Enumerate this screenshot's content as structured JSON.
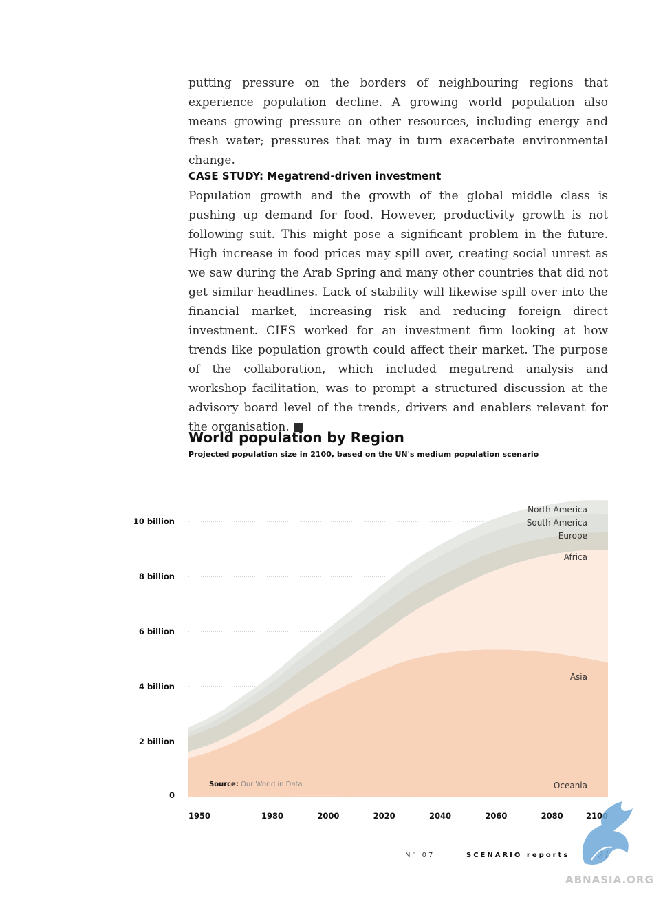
{
  "article": {
    "paragraph1": "putting pressure on the borders of neighbouring regions that experience population decline. A growing world population also means growing pressure on other resources, including energy and fresh water; pressures that may in turn exacerbate environmental change.",
    "case_heading": "CASE STUDY: Megatrend-driven investment",
    "paragraph2": "Population growth and the growth of the global middle class is pushing up demand for food. However, productivity growth is not following suit. This might pose a significant problem in the future. High increase in food prices may spill over, creating social unrest as we saw during the Arab Spring and many other countries that did not get similar headlines. Lack of stability will likewise spill over into the financial market, increasing risk and reducing foreign direct investment. CIFS worked for an investment firm looking at how trends like population growth could affect their market. The purpose of the collaboration, which included megatrend analysis and workshop facilitation, was to prompt a structured discussion at the advisory board level of the trends, drivers and enablers relevant for the organisation. ■"
  },
  "chart_data": {
    "type": "area",
    "stacked": true,
    "title": "World population by Region",
    "subtitle": "Projected population size in 2100, based on the UN's medium population scenario",
    "x": [
      1950,
      1960,
      1970,
      1980,
      1990,
      2000,
      2010,
      2020,
      2030,
      2040,
      2050,
      2060,
      2070,
      2080,
      2090,
      2100
    ],
    "x_ticks": [
      1950,
      1980,
      2000,
      2020,
      2040,
      2060,
      2080,
      2100
    ],
    "x_tick_labels": [
      "1950",
      "1980",
      "2000",
      "2020",
      "2040",
      "2060",
      "2080",
      "2100"
    ],
    "y_ticks": [
      0,
      2,
      4,
      6,
      8,
      10
    ],
    "y_tick_labels": [
      "0",
      "2 billion",
      "4 billion",
      "6 billion",
      "8 billion",
      "10 billion"
    ],
    "ylim": [
      0,
      11
    ],
    "xlim": [
      1950,
      2100
    ],
    "grid": "horizontal-dotted",
    "series": [
      {
        "name": "Oceania",
        "color": "#f7d0b6",
        "values": [
          0.01,
          0.02,
          0.02,
          0.02,
          0.03,
          0.03,
          0.04,
          0.04,
          0.05,
          0.05,
          0.06,
          0.06,
          0.06,
          0.07,
          0.07,
          0.07
        ]
      },
      {
        "name": "Asia",
        "color": "#f9d2ba",
        "values": [
          1.38,
          1.69,
          2.13,
          2.63,
          3.2,
          3.71,
          4.17,
          4.6,
          4.95,
          5.15,
          5.25,
          5.28,
          5.25,
          5.15,
          5.0,
          4.8
        ]
      },
      {
        "name": "Africa",
        "color": "#fdebe0",
        "values": [
          0.23,
          0.28,
          0.36,
          0.48,
          0.63,
          0.81,
          1.04,
          1.34,
          1.7,
          2.08,
          2.49,
          2.9,
          3.26,
          3.58,
          3.87,
          4.1
        ]
      },
      {
        "name": "Europe",
        "color": "#d9d6cc",
        "values": [
          0.55,
          0.6,
          0.66,
          0.69,
          0.72,
          0.73,
          0.74,
          0.75,
          0.74,
          0.73,
          0.71,
          0.69,
          0.67,
          0.65,
          0.64,
          0.63
        ]
      },
      {
        "name": "South America",
        "color": "#dfe2dc",
        "values": [
          0.17,
          0.22,
          0.29,
          0.36,
          0.44,
          0.52,
          0.59,
          0.65,
          0.7,
          0.73,
          0.75,
          0.75,
          0.74,
          0.72,
          0.7,
          0.68
        ]
      },
      {
        "name": "North America",
        "color": "#e7e9e5",
        "values": [
          0.17,
          0.2,
          0.23,
          0.25,
          0.28,
          0.31,
          0.34,
          0.37,
          0.39,
          0.41,
          0.42,
          0.44,
          0.45,
          0.46,
          0.48,
          0.49
        ]
      }
    ],
    "legend": "inline-right",
    "source_label": "Source:",
    "source_text": "Our World in Data"
  },
  "footer": {
    "issue": "N° 07",
    "series": "SCENARIO reports",
    "page": "21",
    "watermark": "ABNASIA.ORG"
  },
  "colors": {
    "grid": "#aaaaaa",
    "watermark_logo": "#6fa8d8"
  }
}
